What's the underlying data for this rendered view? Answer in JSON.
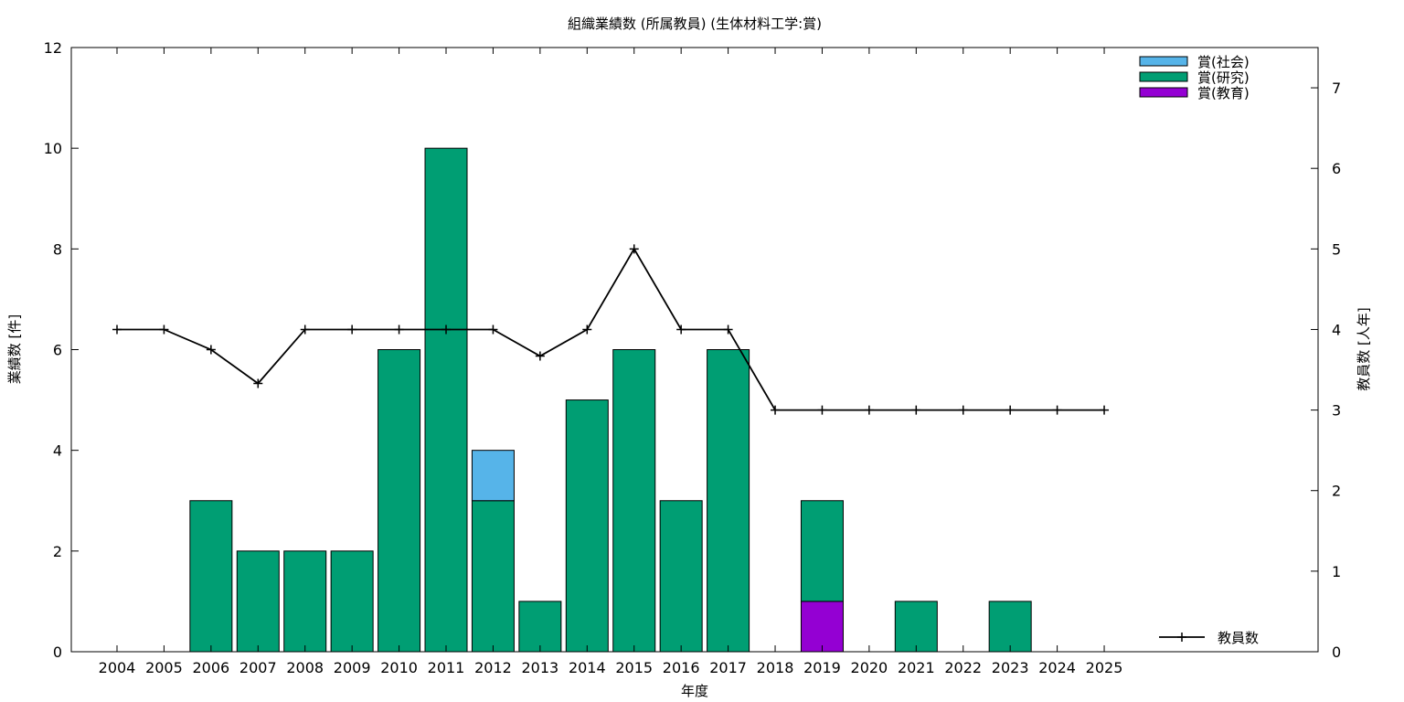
{
  "chart_data": {
    "type": "bar",
    "title": "組織業績数 (所属教員) (生体材料工学:賞)",
    "xlabel": "年度",
    "ylabel": "業績数 [件]",
    "y2label": "教員数 [人年]",
    "ylim": [
      0,
      12
    ],
    "y2lim": [
      0,
      7.5
    ],
    "yticks": [
      "0",
      "2",
      "4",
      "6",
      "8",
      "10",
      "12"
    ],
    "y2ticks": [
      "0",
      "1",
      "2",
      "3",
      "4",
      "5",
      "6",
      "7"
    ],
    "legend_placement": "top-right",
    "grid": false,
    "stacked": true,
    "categories": [
      "2004",
      "2005",
      "2006",
      "2007",
      "2008",
      "2009",
      "2010",
      "2011",
      "2012",
      "2013",
      "2014",
      "2015",
      "2016",
      "2017",
      "2018",
      "2019",
      "2020",
      "2021",
      "2022",
      "2023",
      "2024",
      "2025"
    ],
    "series": [
      {
        "name": "賞(教育)",
        "color": "#9400d3",
        "values": [
          0,
          0,
          0,
          0,
          0,
          0,
          0,
          0,
          0,
          0,
          0,
          0,
          0,
          0,
          0,
          1,
          0,
          0,
          0,
          0,
          0,
          0
        ]
      },
      {
        "name": "賞(研究)",
        "color": "#009e73",
        "values": [
          0,
          0,
          3,
          2,
          2,
          2,
          6,
          10,
          3,
          1,
          5,
          6,
          3,
          6,
          0,
          2,
          0,
          1,
          0,
          1,
          0,
          0
        ]
      },
      {
        "name": "賞(社会)",
        "color": "#56b4e9",
        "values": [
          0,
          0,
          0,
          0,
          0,
          0,
          0,
          0,
          1,
          0,
          0,
          0,
          0,
          0,
          0,
          0,
          0,
          0,
          0,
          0,
          0,
          0
        ]
      }
    ],
    "legend_order": [
      "賞(社会)",
      "賞(研究)",
      "賞(教育)"
    ],
    "line_series": {
      "name": "教員数",
      "axis": "right",
      "color": "#000000",
      "values": [
        4,
        4,
        3.75,
        3.33,
        4,
        4,
        4,
        4,
        4,
        3.67,
        4,
        5,
        4,
        4,
        3,
        3,
        3,
        3,
        3,
        3,
        3,
        3
      ]
    }
  }
}
